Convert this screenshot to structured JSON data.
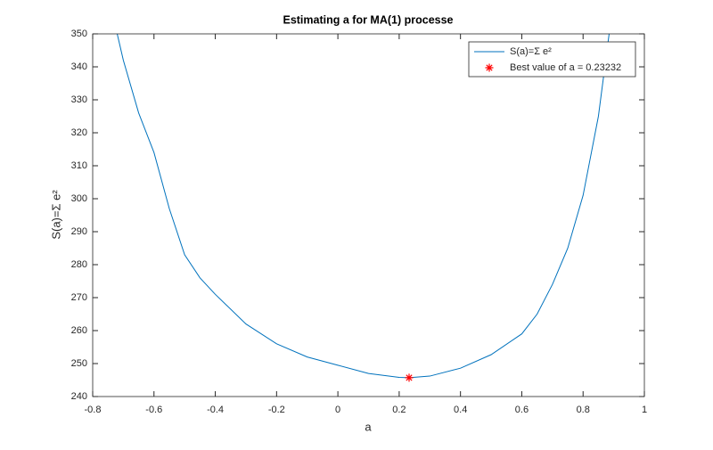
{
  "chart_data": {
    "type": "line",
    "title": "Estimating a for MA(1) processe",
    "xlabel": "a",
    "ylabel": "S(a)=Σ e²",
    "xlim": [
      -0.8,
      1
    ],
    "ylim": [
      240,
      350
    ],
    "xticks": [
      -0.8,
      -0.6,
      -0.4,
      -0.2,
      0,
      0.2,
      0.4,
      0.6,
      0.8,
      1
    ],
    "yticks": [
      240,
      250,
      260,
      270,
      280,
      290,
      300,
      310,
      320,
      330,
      340,
      350
    ],
    "grid": false,
    "legend": "northeast",
    "series": [
      {
        "name": "S(a)=Σ e²",
        "color": "#0072bd",
        "x": [
          -0.72,
          -0.7,
          -0.65,
          -0.6,
          -0.55,
          -0.5,
          -0.45,
          -0.4,
          -0.3,
          -0.2,
          -0.1,
          0,
          0.1,
          0.2,
          0.23232,
          0.3,
          0.4,
          0.5,
          0.6,
          0.65,
          0.7,
          0.75,
          0.8,
          0.85,
          0.885
        ],
        "y": [
          350,
          342,
          326,
          314,
          297,
          283,
          276,
          271,
          262,
          256,
          252,
          249.5,
          247,
          245.8,
          245.7,
          246.2,
          248.6,
          252.7,
          259,
          265,
          274,
          285,
          301,
          325,
          350
        ]
      },
      {
        "name": "Best value of a = 0.23232",
        "color": "#ff0000",
        "marker": "*",
        "x": [
          0.23232
        ],
        "y": [
          245.7
        ]
      }
    ]
  }
}
